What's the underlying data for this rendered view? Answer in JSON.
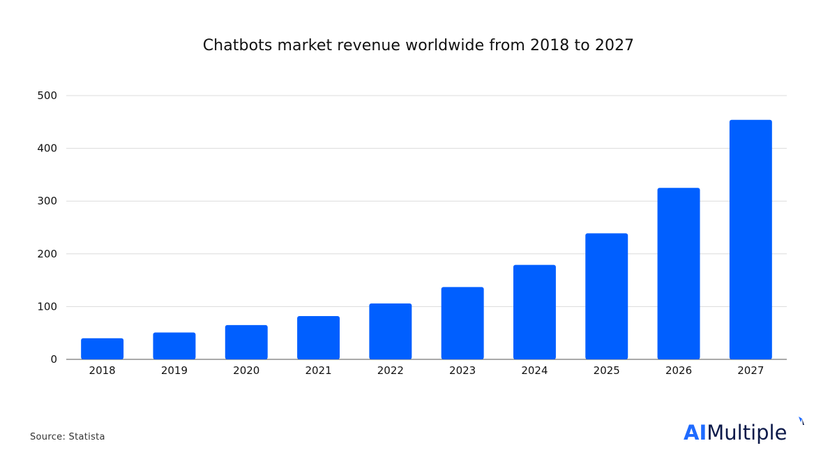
{
  "chart_data": {
    "type": "bar",
    "title": "Chatbots market revenue worldwide from 2018 to 2027",
    "xlabel": "",
    "ylabel": "",
    "categories": [
      "2018",
      "2019",
      "2020",
      "2021",
      "2022",
      "2023",
      "2024",
      "2025",
      "2026",
      "2027"
    ],
    "values": [
      40,
      51,
      65,
      82,
      106,
      137,
      179,
      239,
      325,
      454
    ],
    "ylim": [
      0,
      500
    ],
    "yticks": [
      "0",
      "100",
      "200",
      "300",
      "400",
      "500"
    ],
    "grid": true,
    "bar_color": "#005fff"
  },
  "footer": {
    "source": "Source: Statista"
  },
  "brand": {
    "ai": "AI",
    "multiple": "Multiple"
  }
}
